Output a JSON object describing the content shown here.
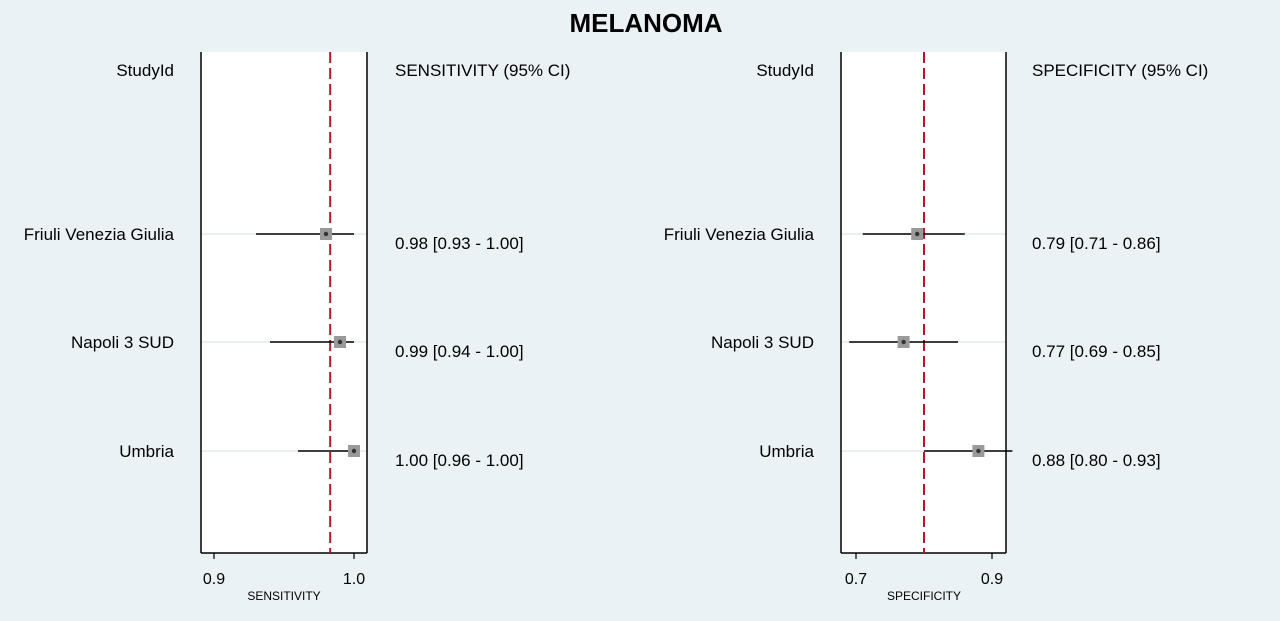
{
  "colors": {
    "background": "#ebf2f5",
    "panel": "#ffffff",
    "pooled_line": "#b5162b",
    "marker": "#9a9a9a",
    "row_line": "#dfeaea"
  },
  "chart_data": {
    "title": "MELANOMA",
    "type": "forest",
    "studies": [
      "Friuli Venezia Giulia",
      "Napoli 3 SUD",
      "Umbria"
    ],
    "panels": [
      {
        "id": "sensitivity",
        "study_header": "StudyId",
        "ci_header": "SENSITIVITY (95% CI)",
        "xlabel": "SENSITIVITY",
        "xlim": [
          0.895,
          1.005
        ],
        "ticks": [
          0.9,
          1.0
        ],
        "tick_labels": [
          "0.9",
          "1.0"
        ],
        "pooled": 0.983,
        "estimates": [
          0.98,
          0.99,
          1.0
        ],
        "lower": [
          0.93,
          0.94,
          0.96
        ],
        "upper": [
          1.0,
          1.0,
          1.0
        ],
        "ci_text": [
          "0.98 [0.93 - 1.00]",
          "0.99 [0.94 - 1.00]",
          "1.00 [0.96 - 1.00]"
        ]
      },
      {
        "id": "specificity",
        "study_header": "StudyId",
        "ci_header": "SPECIFICITY (95% CI)",
        "xlabel": "SPECIFICITY",
        "xlim": [
          0.69,
          0.91
        ],
        "ticks": [
          0.7,
          0.9
        ],
        "tick_labels": [
          "0.7",
          "0.9"
        ],
        "pooled": 0.8,
        "estimates": [
          0.79,
          0.77,
          0.88
        ],
        "lower": [
          0.71,
          0.69,
          0.8
        ],
        "upper": [
          0.86,
          0.85,
          0.93
        ],
        "ci_text": [
          "0.79 [0.71 - 0.86]",
          "0.77 [0.69 - 0.85]",
          "0.88 [0.80 - 0.93]"
        ]
      }
    ]
  }
}
